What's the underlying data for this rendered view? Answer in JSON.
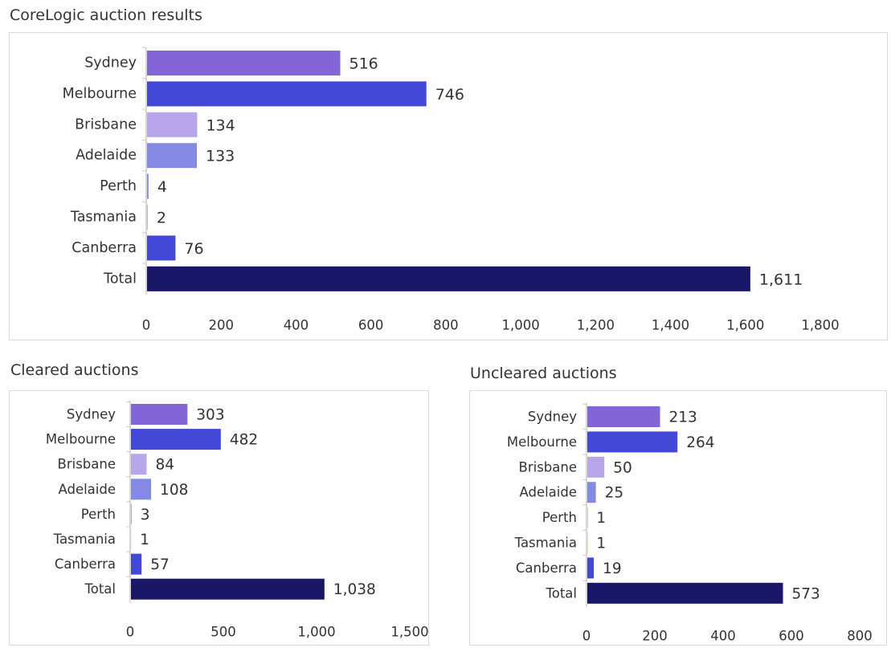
{
  "colors": {
    "Sydney": "#8465d8",
    "Melbourne": "#4448d6",
    "Brisbane": "#b8a6ea",
    "Adelaide": "#8489e4",
    "Perth": "#8489e4",
    "Tasmania": "#b8a6ea",
    "Canberra": "#4448d6",
    "Total": "#1a1668",
    "axis": "#cccccc",
    "text": "#333333"
  },
  "chart_data": [
    {
      "type": "bar",
      "orientation": "horizontal",
      "title": "CoreLogic auction results",
      "categories": [
        "Sydney",
        "Melbourne",
        "Brisbane",
        "Adelaide",
        "Perth",
        "Tasmania",
        "Canberra",
        "Total"
      ],
      "values": [
        516,
        746,
        134,
        133,
        4,
        2,
        76,
        1611
      ],
      "value_labels": [
        "516",
        "746",
        "134",
        "133",
        "4",
        "2",
        "76",
        "1,611"
      ],
      "xlim": [
        0,
        1800
      ],
      "ticks": [
        0,
        200,
        400,
        600,
        800,
        1000,
        1200,
        1400,
        1600,
        1800
      ],
      "tick_labels": [
        "0",
        "200",
        "400",
        "600",
        "800",
        "1,000",
        "1,200",
        "1,400",
        "1,600",
        "1,800"
      ],
      "grid": false
    },
    {
      "type": "bar",
      "orientation": "horizontal",
      "title": "Cleared auctions",
      "categories": [
        "Sydney",
        "Melbourne",
        "Brisbane",
        "Adelaide",
        "Perth",
        "Tasmania",
        "Canberra",
        "Total"
      ],
      "values": [
        303,
        482,
        84,
        108,
        3,
        1,
        57,
        1038
      ],
      "value_labels": [
        "303",
        "482",
        "84",
        "108",
        "3",
        "1",
        "57",
        "1,038"
      ],
      "xlim": [
        0,
        1500
      ],
      "ticks": [
        0,
        500,
        1000,
        1500
      ],
      "tick_labels": [
        "0",
        "500",
        "1,000",
        "1,500"
      ],
      "grid": false
    },
    {
      "type": "bar",
      "orientation": "horizontal",
      "title": "Uncleared auctions",
      "categories": [
        "Sydney",
        "Melbourne",
        "Brisbane",
        "Adelaide",
        "Perth",
        "Tasmania",
        "Canberra",
        "Total"
      ],
      "values": [
        213,
        264,
        50,
        25,
        1,
        1,
        19,
        573
      ],
      "value_labels": [
        "213",
        "264",
        "50",
        "25",
        "1",
        "1",
        "19",
        "573"
      ],
      "xlim": [
        0,
        800
      ],
      "ticks": [
        0,
        200,
        400,
        600,
        800
      ],
      "tick_labels": [
        "0",
        "200",
        "400",
        "600",
        "800"
      ],
      "grid": false
    }
  ]
}
